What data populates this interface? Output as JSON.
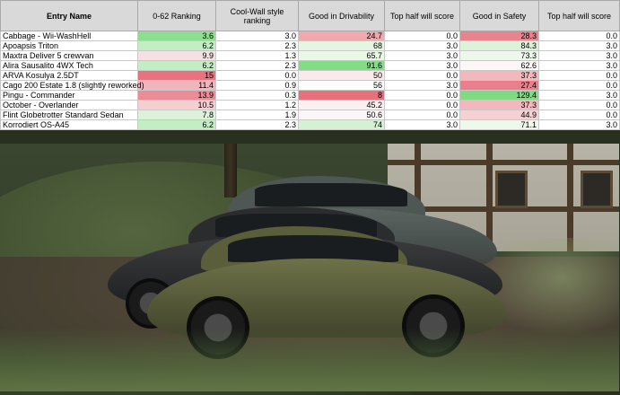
{
  "table": {
    "headers": [
      "Entry Name",
      "0-62 Ranking",
      "Cool-Wall style ranking",
      "Good in Drivability",
      "Top half will score",
      "Good in Safety",
      "Top half will score"
    ],
    "rows": [
      {
        "name": "Cabbage - Wii-WashHell",
        "r062": "3.6",
        "cool": "3.0",
        "drive": "24.7",
        "top1": "0.0",
        "safety": "28.3",
        "top2": "0.0"
      },
      {
        "name": "Apoapsis Triton",
        "r062": "6.2",
        "cool": "2.3",
        "drive": "68",
        "top1": "3.0",
        "safety": "84.3",
        "top2": "3.0"
      },
      {
        "name": "Maxtra Deliver 5 crewvan",
        "r062": "9.9",
        "cool": "1.3",
        "drive": "65.7",
        "top1": "3.0",
        "safety": "73.3",
        "top2": "3.0"
      },
      {
        "name": "Alira Sausalito 4WX Tech",
        "r062": "6.2",
        "cool": "2.3",
        "drive": "91.6",
        "top1": "3.0",
        "safety": "62.6",
        "top2": "3.0"
      },
      {
        "name": "ARVA Kosulya 2.5DT",
        "r062": "15",
        "cool": "0.0",
        "drive": "50",
        "top1": "0.0",
        "safety": "37.3",
        "top2": "0.0"
      },
      {
        "name": "Cago 200 Estate 1.8 (slightly reworked)",
        "r062": "11.4",
        "cool": "0.9",
        "drive": "56",
        "top1": "3.0",
        "safety": "27.4",
        "top2": "0.0"
      },
      {
        "name": "Pingu - Commander",
        "r062": "13.9",
        "cool": "0.3",
        "drive": "8",
        "top1": "0.0",
        "safety": "129.4",
        "top2": "3.0"
      },
      {
        "name": "October - Overlander",
        "r062": "10.5",
        "cool": "1.2",
        "drive": "45.2",
        "top1": "0.0",
        "safety": "37.3",
        "top2": "0.0"
      },
      {
        "name": "Flint Globetrotter Standard Sedan",
        "r062": "7.8",
        "cool": "1.9",
        "drive": "50.6",
        "top1": "0.0",
        "safety": "44.9",
        "top2": "0.0"
      },
      {
        "name": "Korrodiert OS-A45",
        "r062": "6.2",
        "cool": "2.3",
        "drive": "74",
        "top1": "3.0",
        "safety": "71.1",
        "top2": "3.0"
      }
    ]
  },
  "colors": {
    "r062": [
      "#8ddf8f",
      "#c3edc2",
      "#f6e0e2",
      "#c3edc2",
      "#e8727e",
      "#f1b6bb",
      "#eb8d96",
      "#f5ced1",
      "#dcf3da",
      "#c3edc2"
    ],
    "drive": [
      "#f0a9ae",
      "#e4f6e2",
      "#e9f7e7",
      "#83dc86",
      "#fbeaeb",
      "#fdfdfd",
      "#e8707c",
      "#fbeff0",
      "#fcf6f6",
      "#d5f1d3"
    ],
    "safety": [
      "#e8848e",
      "#dcf3da",
      "#ecf8ea",
      "#fdf6f6",
      "#f2b8bd",
      "#e97f8a",
      "#7fda82",
      "#f2b8bd",
      "#f6d1d4",
      "#eef9ec"
    ]
  }
}
